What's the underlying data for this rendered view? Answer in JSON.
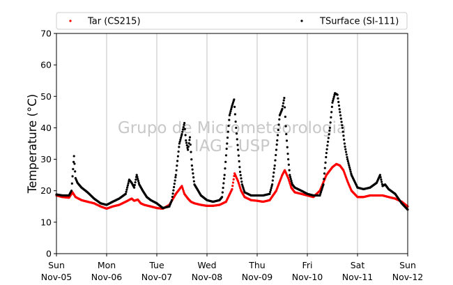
{
  "chart_data": {
    "type": "scatter",
    "title": "",
    "xlabel": "",
    "ylabel": "Temperature (°C)",
    "ylim": [
      0,
      70
    ],
    "yticks": [
      0,
      10,
      20,
      30,
      40,
      50,
      60,
      70
    ],
    "xlim": [
      0,
      7
    ],
    "grid": "vertical-only",
    "legend_placement": "top",
    "watermark": [
      "Grupo de Micrometeorologia",
      "IAG - USP"
    ],
    "xticks": [
      {
        "x": 0,
        "day": "Sun",
        "date": "Nov-05"
      },
      {
        "x": 1,
        "day": "Mon",
        "date": "Nov-06"
      },
      {
        "x": 2,
        "day": "Tue",
        "date": "Nov-07"
      },
      {
        "x": 3,
        "day": "Wed",
        "date": "Nov-08"
      },
      {
        "x": 4,
        "day": "Thu",
        "date": "Nov-09"
      },
      {
        "x": 5,
        "day": "Fri",
        "date": "Nov-10"
      },
      {
        "x": 6,
        "day": "Sat",
        "date": "Nov-11"
      },
      {
        "x": 7,
        "day": "Sun",
        "date": "Nov-12"
      }
    ],
    "series": [
      {
        "name": "Tar (CS215)",
        "color": "#ff0000",
        "x": [
          0,
          0.12,
          0.25,
          0.32,
          0.38,
          0.5,
          0.62,
          0.75,
          0.88,
          1.0,
          1.12,
          1.25,
          1.38,
          1.5,
          1.55,
          1.62,
          1.68,
          1.75,
          1.88,
          2.0,
          2.12,
          2.25,
          2.38,
          2.5,
          2.55,
          2.62,
          2.68,
          2.75,
          2.88,
          3.0,
          3.12,
          3.25,
          3.38,
          3.5,
          3.55,
          3.62,
          3.68,
          3.75,
          3.88,
          4.0,
          4.12,
          4.25,
          4.38,
          4.5,
          4.55,
          4.62,
          4.68,
          4.75,
          4.88,
          5.0,
          5.12,
          5.25,
          5.38,
          5.5,
          5.58,
          5.65,
          5.72,
          5.8,
          5.88,
          6.0,
          6.12,
          6.25,
          6.38,
          6.5,
          6.62,
          6.75,
          6.88,
          7.0
        ],
        "y": [
          18.5,
          18.0,
          17.8,
          19.5,
          18.0,
          17.0,
          16.5,
          16.0,
          15.0,
          14.3,
          15.0,
          15.5,
          16.5,
          17.5,
          16.8,
          17.2,
          16.0,
          15.5,
          15.0,
          14.5,
          14.3,
          15.5,
          19.0,
          21.5,
          19.0,
          17.5,
          16.5,
          16.0,
          15.5,
          15.2,
          15.2,
          15.5,
          16.5,
          20.5,
          25.5,
          23.0,
          20.0,
          18.0,
          17.0,
          16.8,
          16.5,
          17.0,
          20.0,
          25.0,
          26.5,
          24.0,
          21.0,
          19.5,
          19.0,
          18.5,
          18.0,
          20.0,
          25.0,
          27.5,
          28.5,
          28.0,
          26.5,
          23.0,
          20.0,
          18.0,
          18.0,
          18.5,
          18.5,
          18.5,
          18.0,
          17.5,
          16.5,
          15.0
        ]
      },
      {
        "name": "TSurface (SI-111)",
        "color": "#000000",
        "x": [
          0,
          0.12,
          0.25,
          0.3,
          0.35,
          0.38,
          0.42,
          0.5,
          0.62,
          0.75,
          0.88,
          1.0,
          1.12,
          1.25,
          1.38,
          1.45,
          1.5,
          1.55,
          1.6,
          1.65,
          1.72,
          1.8,
          1.88,
          2.0,
          2.12,
          2.25,
          2.3,
          2.38,
          2.45,
          2.5,
          2.55,
          2.58,
          2.62,
          2.66,
          2.7,
          2.75,
          2.88,
          3.0,
          3.12,
          3.25,
          3.3,
          3.35,
          3.4,
          3.45,
          3.5,
          3.54,
          3.58,
          3.62,
          3.66,
          3.7,
          3.75,
          3.88,
          4.0,
          4.12,
          4.25,
          4.3,
          4.35,
          4.4,
          4.45,
          4.5,
          4.54,
          4.58,
          4.62,
          4.65,
          4.7,
          4.75,
          4.88,
          5.0,
          5.12,
          5.25,
          5.32,
          5.38,
          5.45,
          5.5,
          5.55,
          5.6,
          5.65,
          5.7,
          5.75,
          5.8,
          5.88,
          6.0,
          6.12,
          6.25,
          6.38,
          6.45,
          6.5,
          6.55,
          6.62,
          6.75,
          6.88,
          7.0
        ],
        "y": [
          18.8,
          18.5,
          18.5,
          20.0,
          31.0,
          24.0,
          22.5,
          21.0,
          19.5,
          17.5,
          16.0,
          15.5,
          16.5,
          17.5,
          19.0,
          23.5,
          22.5,
          21.0,
          25.0,
          22.0,
          20.0,
          18.0,
          17.0,
          16.0,
          14.5,
          15.0,
          17.0,
          25.0,
          35.0,
          38.0,
          41.5,
          36.0,
          33.0,
          37.0,
          28.0,
          22.0,
          18.5,
          17.0,
          16.5,
          17.0,
          18.0,
          25.0,
          35.0,
          44.0,
          47.0,
          49.0,
          40.0,
          33.0,
          26.0,
          22.0,
          19.5,
          18.5,
          18.5,
          18.5,
          19.0,
          22.0,
          28.0,
          36.0,
          44.0,
          46.0,
          49.5,
          38.0,
          30.0,
          25.0,
          22.0,
          21.0,
          20.0,
          19.0,
          18.5,
          18.5,
          22.0,
          32.0,
          40.0,
          48.0,
          51.0,
          50.5,
          45.0,
          40.0,
          34.0,
          30.0,
          25.0,
          21.0,
          20.5,
          21.0,
          22.5,
          25.0,
          21.5,
          22.0,
          20.5,
          19.0,
          16.0,
          14.0
        ]
      }
    ]
  }
}
